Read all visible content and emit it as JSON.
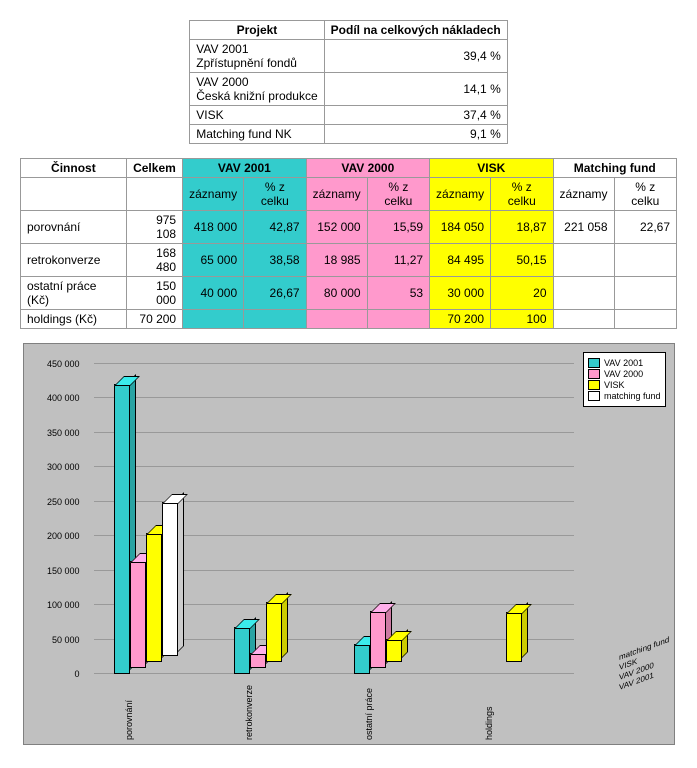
{
  "table1": {
    "headers": [
      "Projekt",
      "Podíl na celkových nákladech"
    ],
    "rows": [
      {
        "name_l1": "VAV 2001",
        "name_l2": "Zpřístupnění fondů",
        "share": "39,4 %"
      },
      {
        "name_l1": "VAV 2000",
        "name_l2": "Česká knižní produkce",
        "share": "14,1 %"
      },
      {
        "name_l1": "VISK",
        "name_l2": "",
        "share": "37,4 %"
      },
      {
        "name_l1": "Matching fund NK",
        "name_l2": "",
        "share": "9,1 %"
      }
    ]
  },
  "table2": {
    "col_groups": [
      "Činnost",
      "Celkem",
      "VAV 2001",
      "VAV 2000",
      "VISK",
      "Matching fund"
    ],
    "sub": {
      "rec": "záznamy",
      "pct": "% z celku",
      "pct2": "% z celku"
    },
    "rows": [
      {
        "act": "porovnání",
        "total": "975 108",
        "vav2001_r": "418 000",
        "vav2001_p": "42,87",
        "vav2000_r": "152 000",
        "vav2000_p": "15,59",
        "visk_r": "184 050",
        "visk_p": "18,87",
        "mf_r": "221 058",
        "mf_p": "22,67"
      },
      {
        "act": "retrokonverze",
        "total": "168 480",
        "vav2001_r": "65 000",
        "vav2001_p": "38,58",
        "vav2000_r": "18 985",
        "vav2000_p": "11,27",
        "visk_r": "84 495",
        "visk_p": "50,15",
        "mf_r": "",
        "mf_p": ""
      },
      {
        "act": "ostatní práce (Kč)",
        "total": "150 000",
        "vav2001_r": "40 000",
        "vav2001_p": "26,67",
        "vav2000_r": "80 000",
        "vav2000_p": "53",
        "visk_r": "30 000",
        "visk_p": "20",
        "mf_r": "",
        "mf_p": ""
      },
      {
        "act": "holdings (Kč)",
        "total": "70 200",
        "vav2001_r": "",
        "vav2001_p": "",
        "vav2000_r": "",
        "vav2000_p": "",
        "visk_r": "70 200",
        "visk_p": "100",
        "mf_r": "",
        "mf_p": ""
      }
    ]
  },
  "chart": {
    "type": "bar3d",
    "background_color": "#c0c0c0",
    "plot_face_color": "#c0c0c0",
    "grid_color": "#999999",
    "ymax": 450000,
    "ytick_step": 50000,
    "yticks": [
      "0",
      "50 000",
      "100 000",
      "150 000",
      "200 000",
      "250 000",
      "300 000",
      "350 000",
      "400 000",
      "450 000"
    ],
    "categories": [
      "porovnání",
      "retrokonverze",
      "ostatní práce",
      "holdings"
    ],
    "series": [
      {
        "name": "VAV 2001",
        "color": "#33cccc",
        "values": [
          418000,
          65000,
          40000,
          0
        ]
      },
      {
        "name": "VAV 2000",
        "color": "#ff99cc",
        "values": [
          152000,
          18985,
          80000,
          0
        ]
      },
      {
        "name": "VISK",
        "color": "#ffff00",
        "values": [
          184050,
          84495,
          30000,
          70200
        ]
      },
      {
        "name": "matching fund",
        "color": "#ffffff",
        "values": [
          221058,
          0,
          0,
          0
        ]
      }
    ],
    "depth_labels": [
      "matching fund",
      "VISK",
      "VAV 2000",
      "VAV 2001"
    ]
  }
}
